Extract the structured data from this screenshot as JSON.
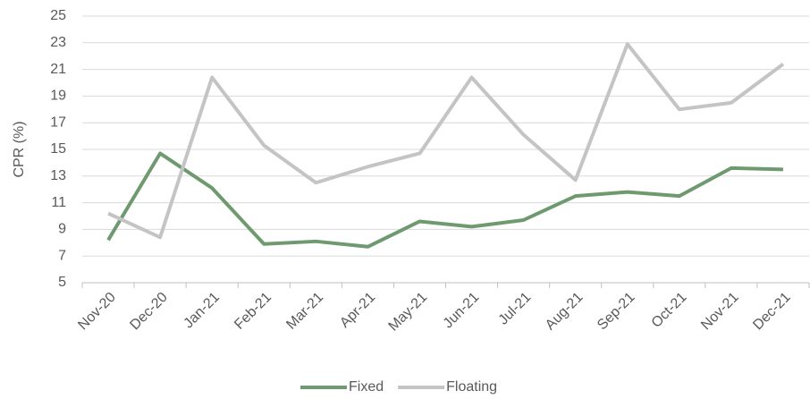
{
  "chart_data": {
    "type": "line",
    "y_label": "CPR (%)",
    "categories": [
      "Nov-20",
      "Dec-20",
      "Jan-21",
      "Feb-21",
      "Mar-21",
      "Apr-21",
      "May-21",
      "Jun-21",
      "Jul-21",
      "Aug-21",
      "Sep-21",
      "Oct-21",
      "Nov-21",
      "Dec-21"
    ],
    "series": [
      {
        "name": "Fixed",
        "color": "#6f9a6f",
        "values": [
          8.2,
          14.7,
          12.1,
          7.9,
          8.1,
          7.7,
          9.6,
          9.2,
          9.7,
          11.5,
          11.8,
          11.5,
          13.6,
          13.5
        ]
      },
      {
        "name": "Floating",
        "color": "#c4c4c4",
        "values": [
          10.2,
          8.4,
          20.4,
          15.3,
          12.5,
          13.7,
          14.7,
          20.4,
          16.1,
          12.7,
          22.9,
          18.0,
          18.5,
          21.4
        ]
      }
    ],
    "ylim": [
      5,
      25
    ],
    "yticks": [
      5,
      7,
      9,
      11,
      13,
      15,
      17,
      19,
      21,
      23,
      25
    ],
    "grid": true,
    "legend": "bottom"
  }
}
